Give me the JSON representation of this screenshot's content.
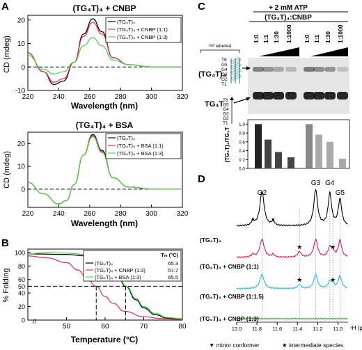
{
  "panels": {
    "A": "A",
    "B": "B",
    "C": "C",
    "D": "D"
  },
  "panelA_top": {
    "title": "(TG₄T)₄ + CNBP",
    "ylabel": "CD (mdeg)",
    "xlabel": "Wavelength (nm)",
    "xticks": [
      "220",
      "240",
      "260",
      "280",
      "300",
      "320"
    ],
    "yticks": [
      "20",
      "10",
      "0",
      "-10"
    ],
    "legend": [
      "(TG₄T)₄",
      "(TG₄T)₄ + CNBP (1:1)",
      "(TG₄T)₄ + CNBP (1:3)"
    ]
  },
  "panelA_bottom": {
    "title": "(TG₄T)₄ + BSA",
    "ylabel": "CD (mdeg)",
    "xlabel": "Wavelength (nm)",
    "xticks": [
      "220",
      "240",
      "260",
      "280",
      "300",
      "320"
    ],
    "yticks": [
      "20",
      "10",
      "0"
    ],
    "legend": [
      "(TG₄T)₄",
      "(TG₄T)₄ + BSA (1:1)",
      "(TG₄T)₄ + BSA (1:3)"
    ]
  },
  "panelB": {
    "ylabel": "% Folding",
    "xlabel": "Temperature (°C)",
    "xticks": [
      "50",
      "60",
      "70",
      "80"
    ],
    "yticks": [
      "100",
      "80",
      "60",
      "50",
      "40",
      "20",
      "0"
    ],
    "tm_header": "Tₘ (°C)",
    "rows": [
      {
        "label": "(TG₄T)₄",
        "tm": "65.3"
      },
      {
        "label": "(TG₄T)₄ + CNBP (1:3)",
        "tm": "57.7"
      },
      {
        "label": "(TG₄T)₄ + BSA (1:3)",
        "tm": "65.5"
      }
    ]
  },
  "panelC": {
    "atp_label": "+ 2 mM ATP",
    "ratio_header": "(TG₄T)₄:CNBP",
    "lanes": [
      "1:0",
      "1:1",
      "1:30",
      "1:1000",
      "1:0",
      "1:1",
      "1:30",
      "1:1000"
    ],
    "p32_label": "³²P labelled",
    "quad_label": "(TG₄T)₄",
    "single_label": "TG₄T",
    "strand_letters": [
      "T6",
      "G5",
      "G4",
      "G3",
      "G2",
      "T1"
    ],
    "bar_ylabel": "(TG₄T)₄/TG₄T",
    "bar_yticks": [
      "1.0",
      "0.8",
      "0.6",
      "0.4",
      "0.2",
      "0.0"
    ]
  },
  "panelD": {
    "peaks": [
      "G2",
      "G3",
      "G4",
      "G5"
    ],
    "traces": [
      {
        "label": "(TG₄T)₄",
        "color": "#000000"
      },
      {
        "label": "(TG₄T)₄ + CNBP (1:1)",
        "color": "#d81b60"
      },
      {
        "label": "(TG₄T)₄ + CNBP (1:1.5)",
        "color": "#29b6d8"
      },
      {
        "label": "(TG₄T)₄ + CNBP (1:3)",
        "color": "#33b233"
      }
    ],
    "xticks": [
      "12.0",
      "11.8",
      "11.6",
      "11.4",
      "11.2",
      "11.0"
    ],
    "xunit": "¹H (ppm)",
    "legend_minor": "▼ minor conformer",
    "legend_intermediate": "★ intermediate species"
  },
  "colors": {
    "black": "#000000",
    "red": "#e8325a",
    "green": "#4cd64c",
    "magenta": "#d81b60",
    "cyan": "#29b6d8"
  },
  "chart_data": [
    {
      "type": "line",
      "title": "(TG₄T)₄ + CNBP",
      "xlabel": "Wavelength (nm)",
      "ylabel": "CD (mdeg)",
      "xlim": [
        220,
        320
      ],
      "ylim": [
        -10,
        22
      ],
      "series": [
        {
          "name": "(TG₄T)₄",
          "x": [
            220,
            230,
            237,
            243,
            250,
            256,
            262,
            268,
            275,
            285,
            300,
            320
          ],
          "y": [
            6,
            -2,
            -7.5,
            -6,
            2,
            14,
            20.5,
            15,
            4,
            1,
            0,
            0
          ]
        },
        {
          "name": "(TG₄T)₄ + CNBP (1:1)",
          "x": [
            220,
            230,
            237,
            243,
            250,
            256,
            262,
            268,
            275,
            285,
            300,
            320
          ],
          "y": [
            6,
            -2,
            -6.5,
            -5,
            2,
            13,
            19,
            14,
            4,
            1,
            0,
            0
          ]
        },
        {
          "name": "(TG₄T)₄ + CNBP (1:3)",
          "x": [
            220,
            230,
            237,
            243,
            250,
            256,
            262,
            268,
            275,
            285,
            300,
            320
          ],
          "y": [
            5,
            -1,
            -3,
            -2,
            2,
            9,
            12.5,
            9,
            3,
            1,
            0,
            0
          ]
        }
      ]
    },
    {
      "type": "line",
      "title": "(TG₄T)₄ + BSA",
      "xlabel": "Wavelength (nm)",
      "ylabel": "CD (mdeg)",
      "xlim": [
        220,
        320
      ],
      "ylim": [
        -8,
        25
      ],
      "series": [
        {
          "name": "(TG₄T)₄",
          "x": [
            220,
            230,
            240,
            245,
            250,
            256,
            262,
            268,
            275,
            285,
            300,
            320
          ],
          "y": [
            3,
            -2,
            -6.5,
            -5,
            2,
            15,
            24,
            17,
            5,
            1,
            0,
            0
          ]
        },
        {
          "name": "(TG₄T)₄ + BSA (1:1)",
          "x": [
            220,
            230,
            240,
            245,
            250,
            256,
            262,
            268,
            275,
            285,
            300,
            320
          ],
          "y": [
            3,
            -2,
            -6.5,
            -5,
            2,
            15,
            23.5,
            16.5,
            5,
            1,
            0,
            0
          ]
        },
        {
          "name": "(TG₄T)₄ + BSA (1:3)",
          "x": [
            220,
            230,
            240,
            245,
            250,
            256,
            262,
            268,
            275,
            285,
            300,
            320
          ],
          "y": [
            3,
            -2,
            -6.5,
            -5,
            2,
            15,
            23,
            16,
            5,
            1,
            0,
            0
          ]
        }
      ]
    },
    {
      "type": "line",
      "xlabel": "Temperature (°C)",
      "ylabel": "% Folding",
      "xlim": [
        40,
        80
      ],
      "ylim": [
        0,
        105
      ],
      "series": [
        {
          "name": "(TG₄T)₄",
          "x": [
            40,
            50,
            55,
            60,
            63,
            65.3,
            68,
            70,
            73,
            76,
            80
          ],
          "y": [
            98,
            97,
            95,
            86,
            70,
            50,
            30,
            18,
            8,
            3,
            2
          ]
        },
        {
          "name": "(TG₄T)₄ + CNBP (1:3)",
          "x": [
            40,
            45,
            50,
            53,
            55,
            57.7,
            60,
            62,
            65,
            70,
            75,
            80
          ],
          "y": [
            95,
            92,
            85,
            74,
            64,
            50,
            35,
            25,
            13,
            5,
            2,
            1
          ]
        },
        {
          "name": "(TG₄T)₄ + BSA (1:3)",
          "x": [
            40,
            45,
            50,
            55,
            60,
            63,
            65.5,
            68,
            70,
            73,
            76,
            80
          ],
          "y": [
            98,
            100,
            99,
            97,
            88,
            72,
            50,
            32,
            20,
            10,
            4,
            2
          ]
        }
      ]
    },
    {
      "type": "bar",
      "ylabel": "(TG₄T)₄/TG₄T",
      "categories": [
        "1:0",
        "1:1",
        "1:30",
        "1:1000",
        "1:0 +ATP",
        "1:1 +ATP",
        "1:30 +ATP",
        "1:1000 +ATP"
      ],
      "values": [
        1.0,
        0.65,
        0.37,
        0.25,
        1.0,
        0.76,
        0.6,
        0.22
      ],
      "ylim": [
        0,
        1.1
      ]
    }
  ]
}
